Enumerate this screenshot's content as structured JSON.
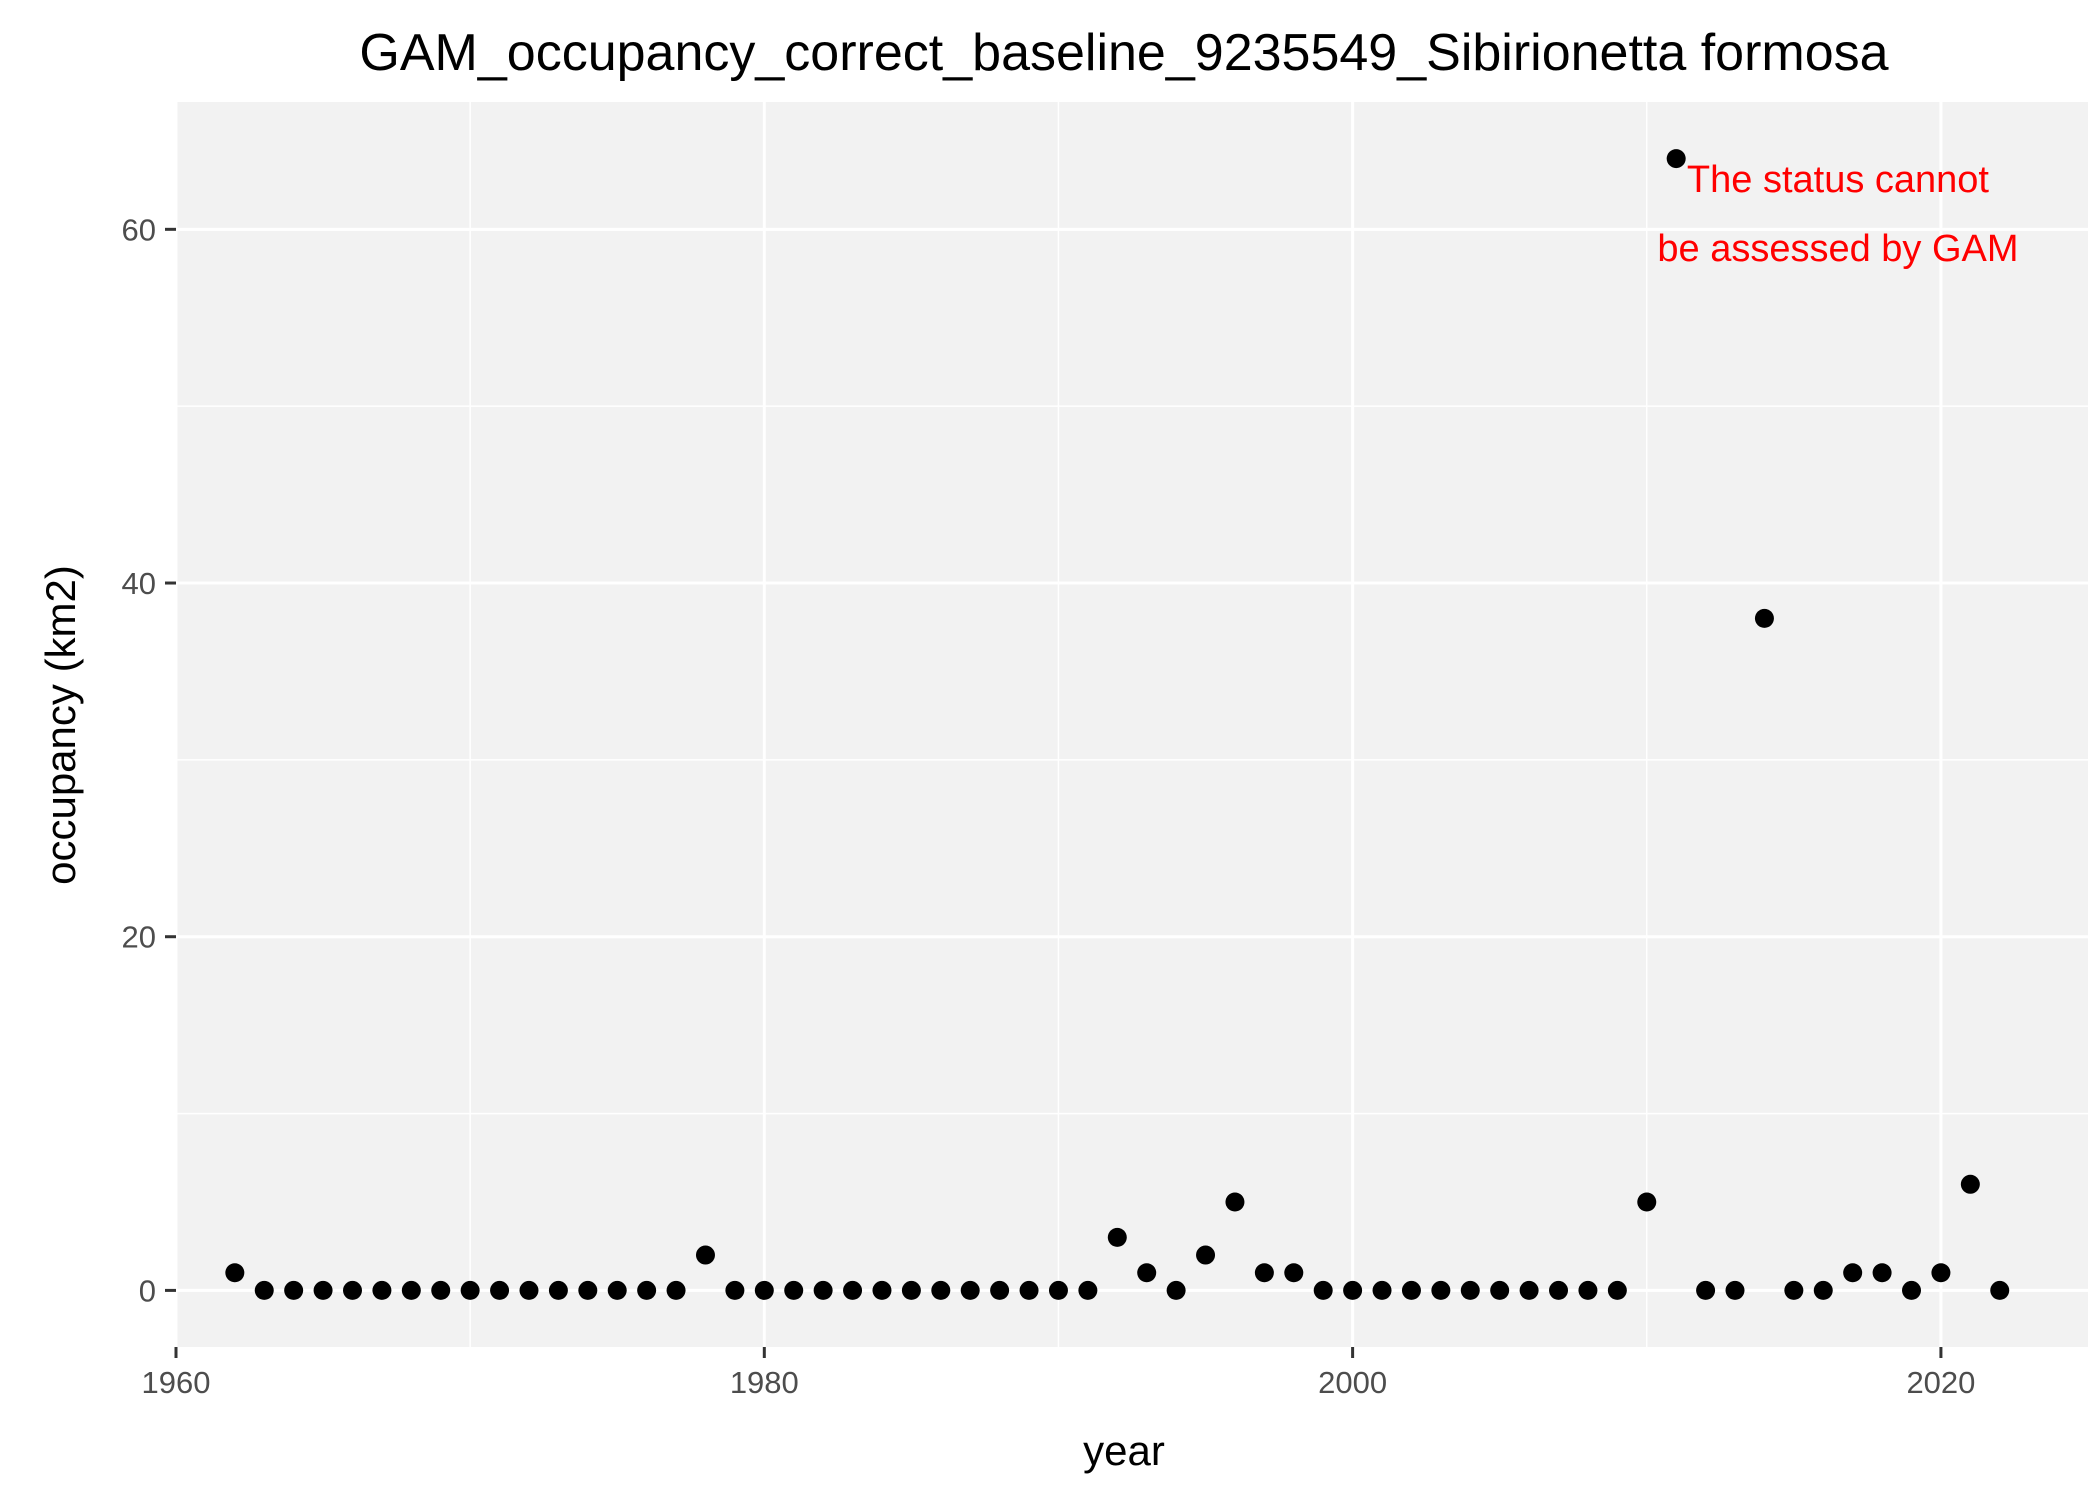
{
  "chart_data": {
    "type": "scatter",
    "title": "GAM_occupancy_correct_baseline_9235549_Sibirionetta formosa",
    "xlabel": "year",
    "ylabel": "occupancy (km2)",
    "xlim": [
      1960,
      2025
    ],
    "ylim": [
      -3.2,
      67.2
    ],
    "x_ticks": [
      1960,
      1980,
      2000,
      2020
    ],
    "y_ticks": [
      0,
      20,
      40,
      60
    ],
    "x_minor_ticks": [
      1970,
      1990,
      2010
    ],
    "y_minor_ticks": [
      10,
      30,
      50
    ],
    "grid": true,
    "panel_background": "#f2f2f2",
    "grid_color": "#ffffff",
    "point_color": "#000000",
    "annotation": {
      "lines": [
        "The status cannot",
        "be assessed by GAM"
      ],
      "color": "#ff0000"
    },
    "points": [
      {
        "x": 1962,
        "y": 1
      },
      {
        "x": 1963,
        "y": 0
      },
      {
        "x": 1964,
        "y": 0
      },
      {
        "x": 1965,
        "y": 0
      },
      {
        "x": 1966,
        "y": 0
      },
      {
        "x": 1967,
        "y": 0
      },
      {
        "x": 1968,
        "y": 0
      },
      {
        "x": 1969,
        "y": 0
      },
      {
        "x": 1970,
        "y": 0
      },
      {
        "x": 1971,
        "y": 0
      },
      {
        "x": 1972,
        "y": 0
      },
      {
        "x": 1973,
        "y": 0
      },
      {
        "x": 1974,
        "y": 0
      },
      {
        "x": 1975,
        "y": 0
      },
      {
        "x": 1976,
        "y": 0
      },
      {
        "x": 1977,
        "y": 0
      },
      {
        "x": 1978,
        "y": 2
      },
      {
        "x": 1979,
        "y": 0
      },
      {
        "x": 1980,
        "y": 0
      },
      {
        "x": 1981,
        "y": 0
      },
      {
        "x": 1982,
        "y": 0
      },
      {
        "x": 1983,
        "y": 0
      },
      {
        "x": 1984,
        "y": 0
      },
      {
        "x": 1985,
        "y": 0
      },
      {
        "x": 1986,
        "y": 0
      },
      {
        "x": 1987,
        "y": 0
      },
      {
        "x": 1988,
        "y": 0
      },
      {
        "x": 1989,
        "y": 0
      },
      {
        "x": 1990,
        "y": 0
      },
      {
        "x": 1991,
        "y": 0
      },
      {
        "x": 1992,
        "y": 3
      },
      {
        "x": 1993,
        "y": 1
      },
      {
        "x": 1994,
        "y": 0
      },
      {
        "x": 1995,
        "y": 2
      },
      {
        "x": 1996,
        "y": 5
      },
      {
        "x": 1997,
        "y": 1
      },
      {
        "x": 1998,
        "y": 1
      },
      {
        "x": 1999,
        "y": 0
      },
      {
        "x": 2000,
        "y": 0
      },
      {
        "x": 2001,
        "y": 0
      },
      {
        "x": 2002,
        "y": 0
      },
      {
        "x": 2003,
        "y": 0
      },
      {
        "x": 2004,
        "y": 0
      },
      {
        "x": 2005,
        "y": 0
      },
      {
        "x": 2006,
        "y": 0
      },
      {
        "x": 2007,
        "y": 0
      },
      {
        "x": 2008,
        "y": 0
      },
      {
        "x": 2009,
        "y": 0
      },
      {
        "x": 2010,
        "y": 5
      },
      {
        "x": 2011,
        "y": 64
      },
      {
        "x": 2012,
        "y": 0
      },
      {
        "x": 2013,
        "y": 0
      },
      {
        "x": 2014,
        "y": 38
      },
      {
        "x": 2015,
        "y": 0
      },
      {
        "x": 2016,
        "y": 0
      },
      {
        "x": 2017,
        "y": 1
      },
      {
        "x": 2018,
        "y": 1
      },
      {
        "x": 2019,
        "y": 0
      },
      {
        "x": 2020,
        "y": 1
      },
      {
        "x": 2021,
        "y": 6
      },
      {
        "x": 2022,
        "y": 0
      }
    ]
  }
}
